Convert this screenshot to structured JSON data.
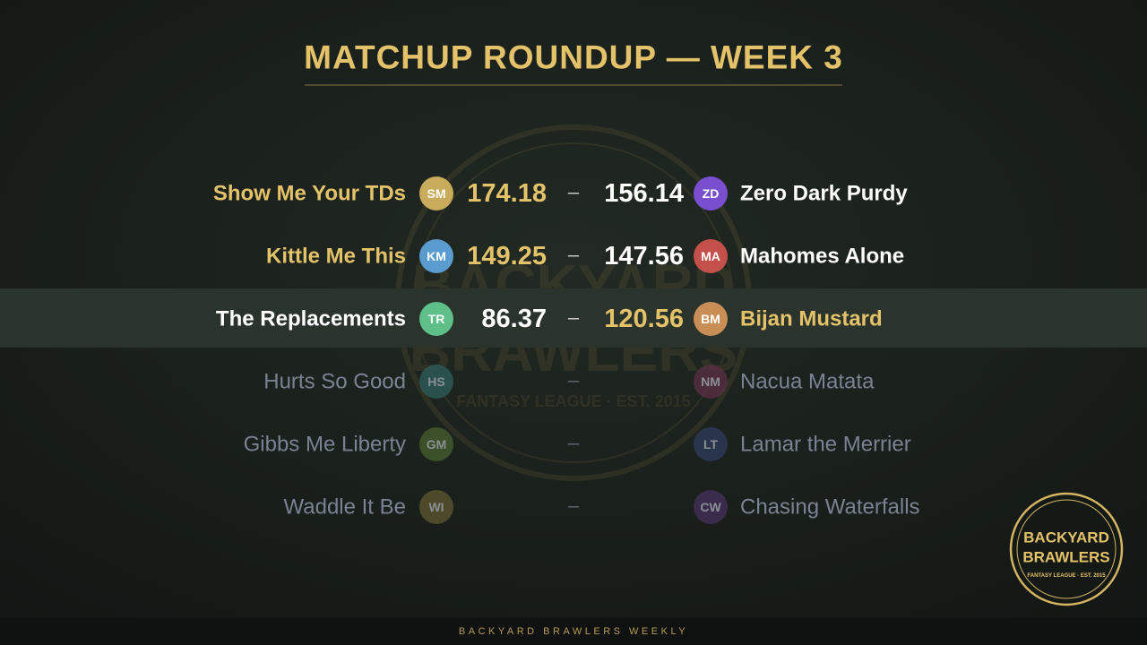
{
  "header": {
    "title": "MATCHUP ROUNDUP — WEEK 3"
  },
  "separator": "–",
  "matchups": [
    {
      "home": {
        "name": "Show Me Your TDs",
        "initials": "SM",
        "color": "#c9ab5c",
        "score": 174.18
      },
      "away": {
        "name": "Zero Dark Purdy",
        "initials": "ZD",
        "color": "#7a4fcf",
        "score": 156.14
      },
      "winner": "home",
      "highlight": false
    },
    {
      "home": {
        "name": "Kittle Me This",
        "initials": "KM",
        "color": "#5a9bd0",
        "score": 149.25
      },
      "away": {
        "name": "Mahomes Alone",
        "initials": "MA",
        "color": "#c4504c",
        "score": 147.56
      },
      "winner": "home",
      "highlight": false
    },
    {
      "home": {
        "name": "The Replacements",
        "initials": "TR",
        "color": "#5ebf88",
        "score": 86.37
      },
      "away": {
        "name": "Bijan Mustard",
        "initials": "BM",
        "color": "#c98e55",
        "score": 120.56
      },
      "winner": "away",
      "highlight": true
    },
    {
      "home": {
        "name": "Hurts So Good",
        "initials": "HS",
        "color": "#2f5f5c"
      },
      "away": {
        "name": "Nacua Matata",
        "initials": "NM",
        "color": "#5c2f45"
      },
      "winner": null,
      "highlight": false
    },
    {
      "home": {
        "name": "Gibbs Me Liberty",
        "initials": "GM",
        "color": "#48602f"
      },
      "away": {
        "name": "Lamar the Merrier",
        "initials": "LT",
        "color": "#2f3c5e"
      },
      "winner": null,
      "highlight": false
    },
    {
      "home": {
        "name": "Waddle It Be",
        "initials": "WI",
        "color": "#5e5a2f"
      },
      "away": {
        "name": "Chasing Waterfalls",
        "initials": "CW",
        "color": "#46305e"
      },
      "winner": null,
      "highlight": false
    }
  ],
  "watermark": {
    "line1": "BACKYARD",
    "line2": "BRAWLERS",
    "tagline": "FANTASY LEAGUE · EST. 2015"
  },
  "logo": {
    "line1": "BACKYARD",
    "line2": "BRAWLERS",
    "tagline": "FANTASY LEAGUE · EST. 2015"
  },
  "footer": {
    "text": "BACKYARD BRAWLERS WEEKLY"
  }
}
